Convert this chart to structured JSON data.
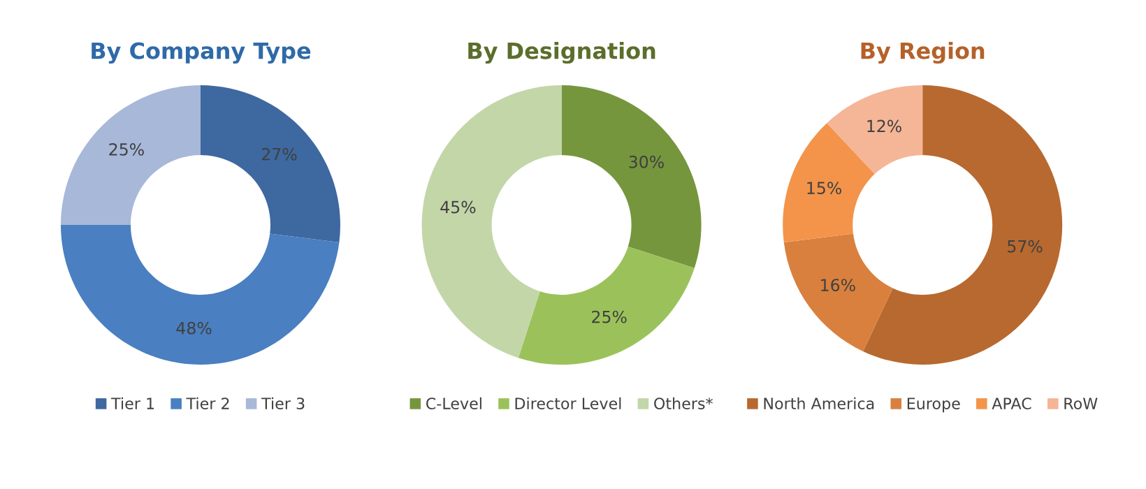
{
  "chart_data": [
    {
      "type": "donut",
      "title": "By Company Type",
      "categories": [
        "Tier 1",
        "Tier 2",
        "Tier 3"
      ],
      "values": [
        27,
        48,
        25
      ],
      "value_labels": [
        "27%",
        "48%",
        "25%"
      ],
      "colors": [
        "#3e68a0",
        "#4a7fc1",
        "#a7b8d9"
      ],
      "legend": "bottom"
    },
    {
      "type": "donut",
      "title": "By Designation",
      "categories": [
        "C-Level",
        "Director Level",
        "Others*"
      ],
      "values": [
        30,
        25,
        45
      ],
      "value_labels": [
        "30%",
        "25%",
        "45%"
      ],
      "colors": [
        "#76963e",
        "#9bc25a",
        "#c3d6a8"
      ],
      "legend": "bottom"
    },
    {
      "type": "donut",
      "title": "By Region",
      "categories": [
        "North America",
        "Europe",
        "APAC",
        "RoW"
      ],
      "values": [
        57,
        16,
        15,
        12
      ],
      "value_labels": [
        "57%",
        "16%",
        "15%",
        "12%"
      ],
      "colors": [
        "#b8692f",
        "#d9803e",
        "#f3944a",
        "#f5b597"
      ],
      "legend": "bottom"
    }
  ]
}
